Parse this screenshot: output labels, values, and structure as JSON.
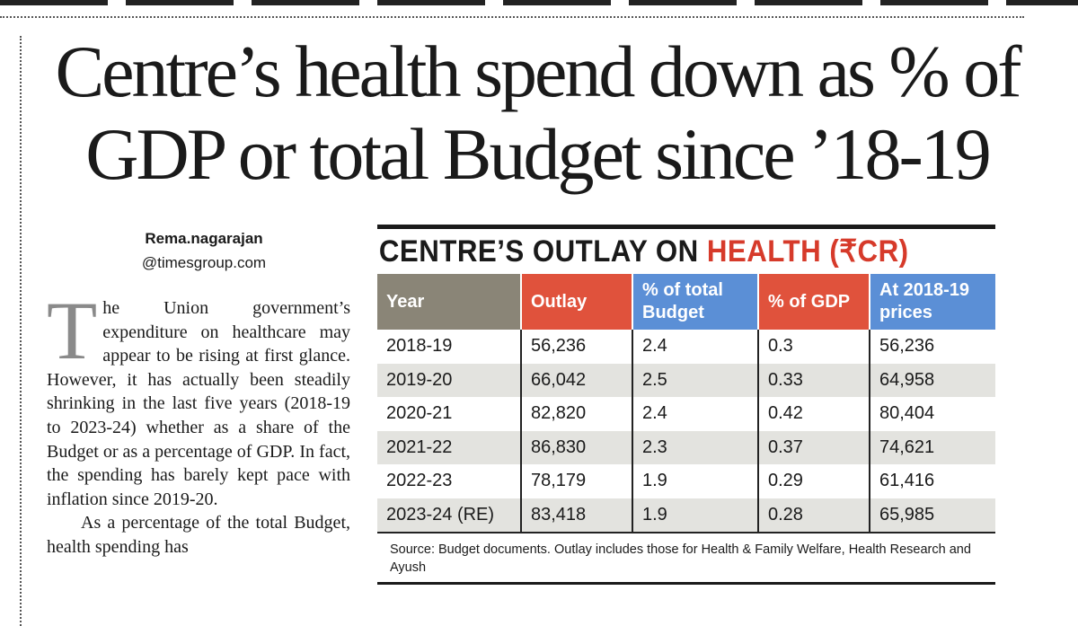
{
  "article": {
    "headline": "Centre’s health spend down as % of GDP or total Budget since ’18-19",
    "byline_name": "Rema.nagarajan",
    "byline_handle": "@timesgroup.com",
    "dropcap": "T",
    "para1": "he Union government’s expenditure on healthcare may appear to be rising at first glance. However, it has actually been steadily shrinking in the last five years (2018-19 to 2023-24) whether as a share of the Budget or as a percentage of GDP. In fact, the spending has barely kept pace with inflation since 2019-20.",
    "para2": "As a percentage of the total Budget, health spending has"
  },
  "table": {
    "title_prefix": "CENTRE’S OUTLAY ON ",
    "title_highlight": "HEALTH (₹CR)",
    "headers": {
      "year": "Year",
      "outlay": "Outlay",
      "pct_budget": "% of total Budget",
      "pct_gdp": "% of GDP",
      "prices": "At 2018-19 prices"
    },
    "rows": [
      {
        "year": "2018-19",
        "outlay": "56,236",
        "pct_budget": "2.4",
        "pct_gdp": "0.3",
        "prices": "56,236"
      },
      {
        "year": "2019-20",
        "outlay": "66,042",
        "pct_budget": "2.5",
        "pct_gdp": "0.33",
        "prices": "64,958"
      },
      {
        "year": "2020-21",
        "outlay": "82,820",
        "pct_budget": "2.4",
        "pct_gdp": "0.42",
        "prices": "80,404"
      },
      {
        "year": "2021-22",
        "outlay": "86,830",
        "pct_budget": "2.3",
        "pct_gdp": "0.37",
        "prices": "74,621"
      },
      {
        "year": "2022-23",
        "outlay": "78,179",
        "pct_budget": "1.9",
        "pct_gdp": "0.29",
        "prices": "61,416"
      },
      {
        "year": "2023-24 (RE)",
        "outlay": "83,418",
        "pct_budget": "1.9",
        "pct_gdp": "0.28",
        "prices": "65,985"
      }
    ],
    "source": "Source: Budget documents. Outlay includes those for Health & Family Welfare, Health Research and Ayush"
  }
}
